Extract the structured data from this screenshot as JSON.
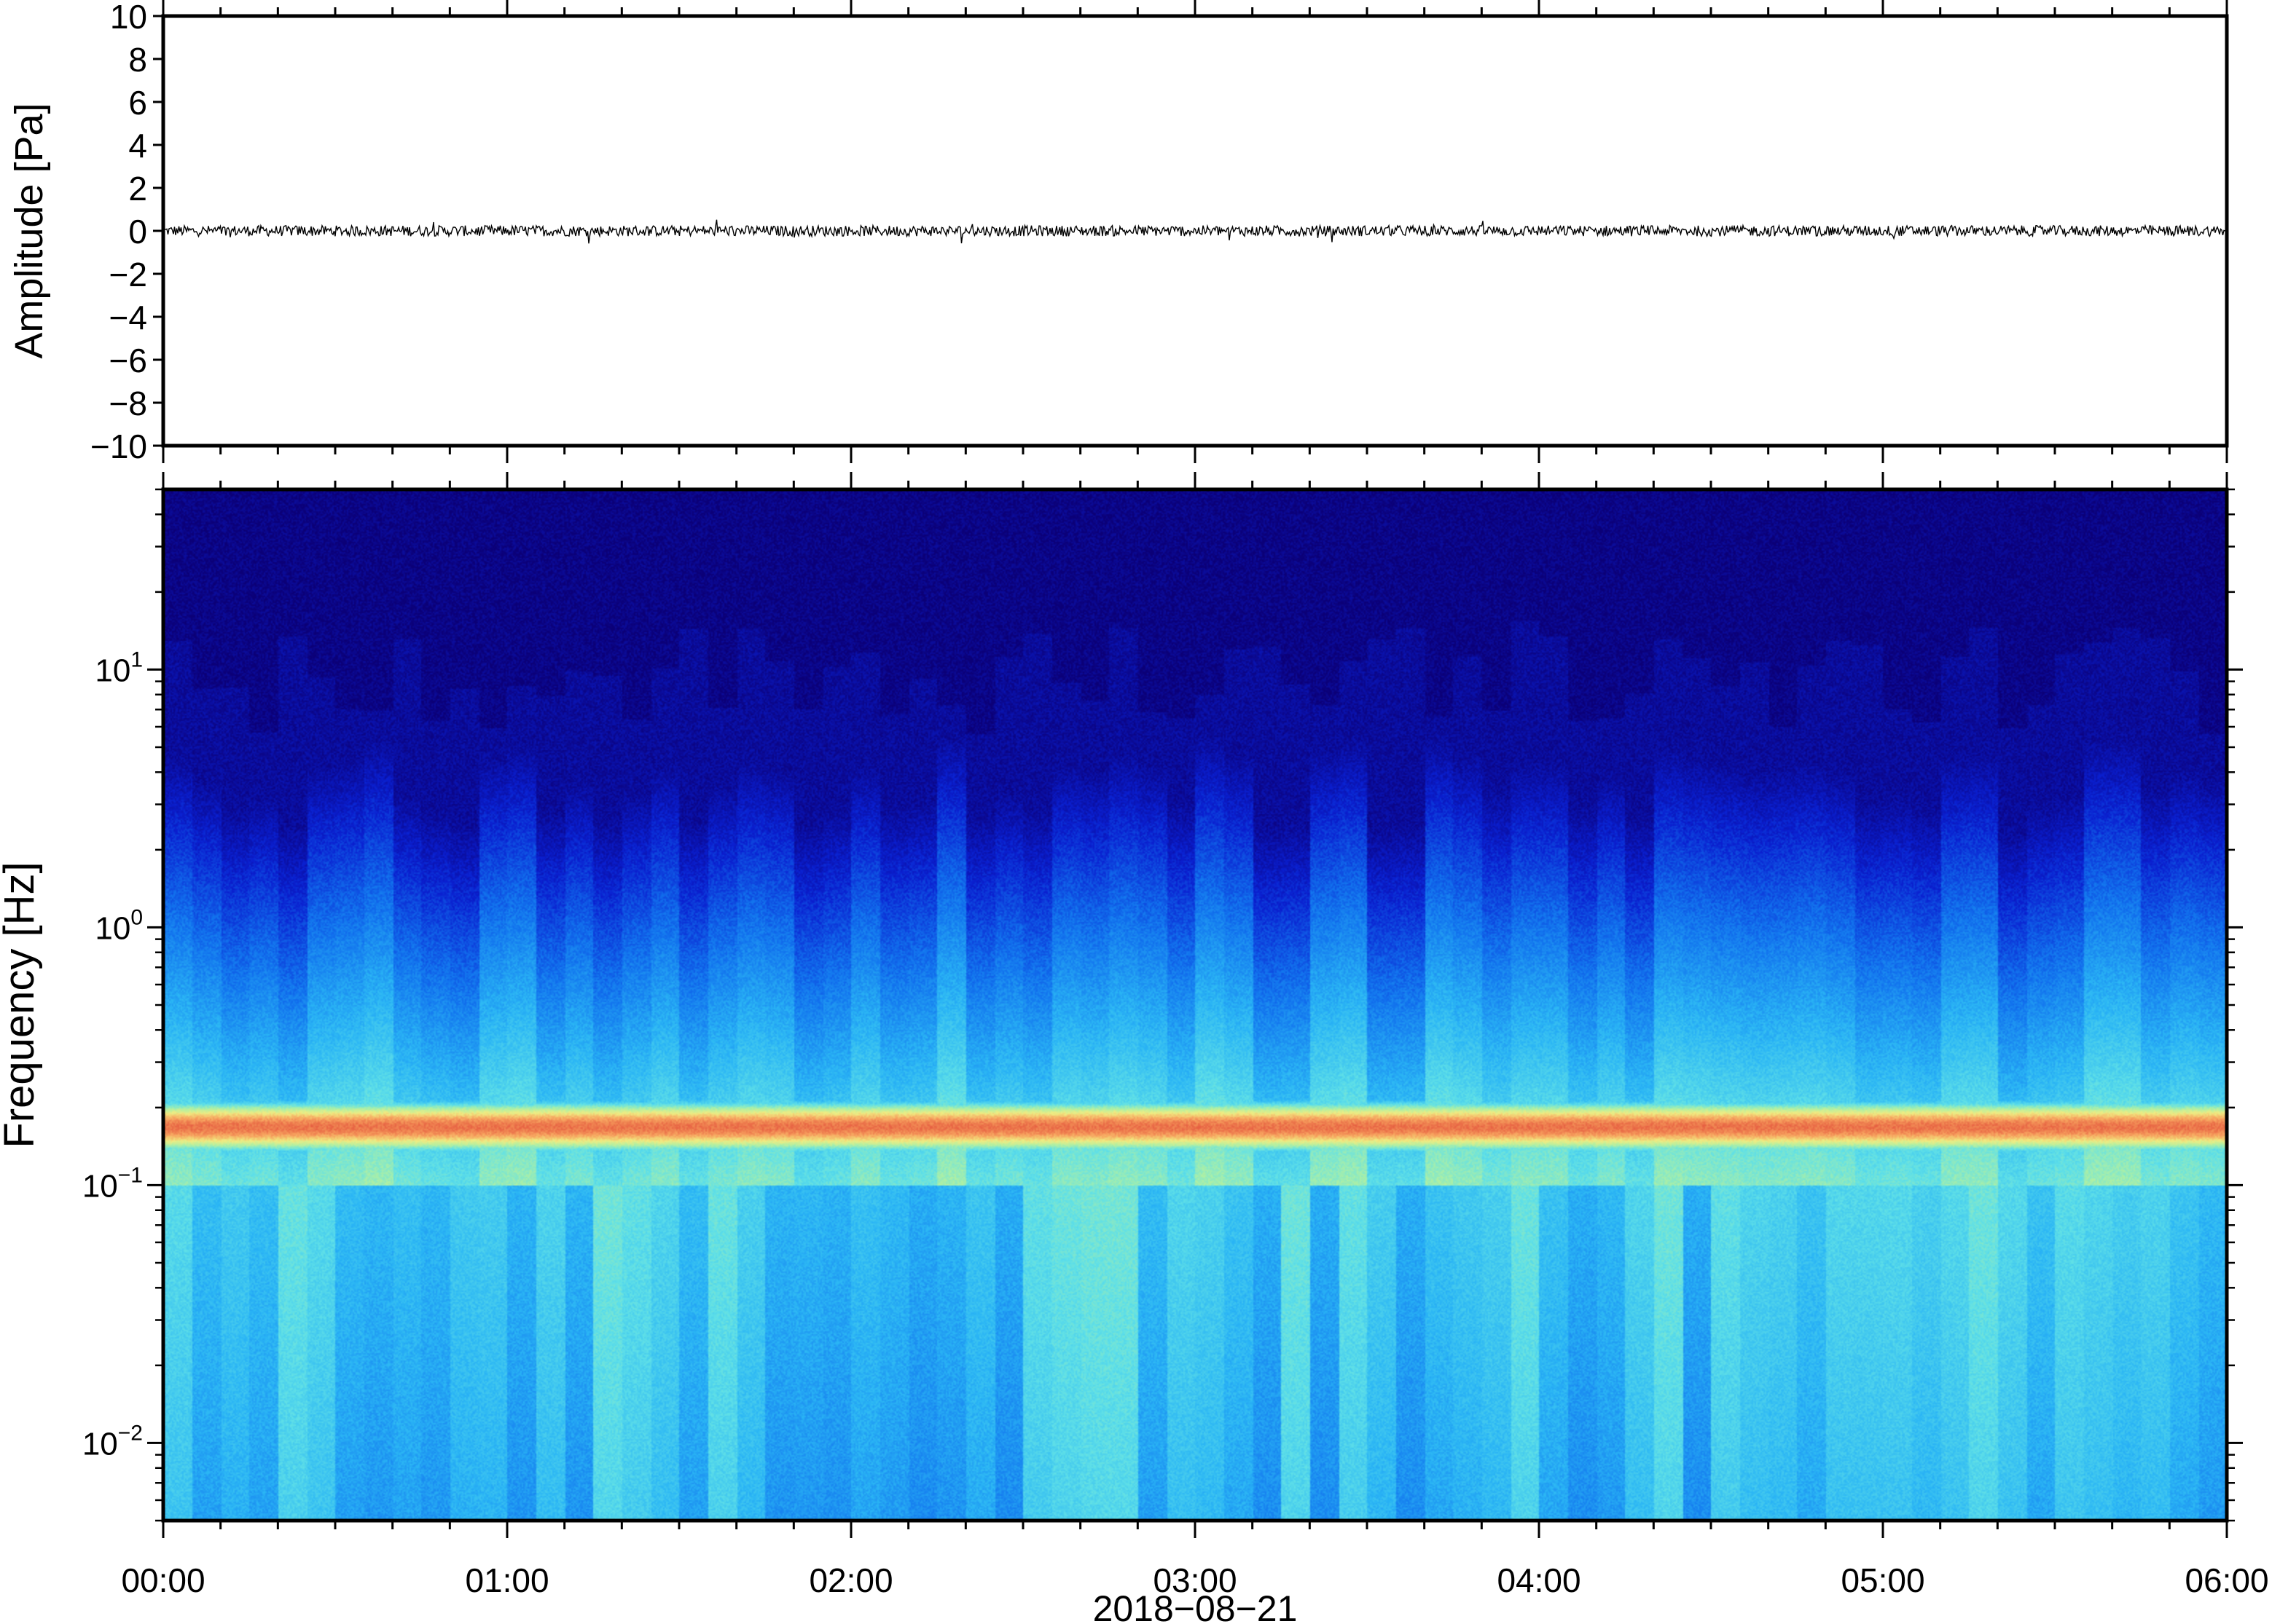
{
  "chart_data": [
    {
      "type": "line",
      "ylabel": "Amplitude [Pa]",
      "ylim": [
        -10,
        10
      ],
      "y_ticks": [
        "10",
        "8",
        "6",
        "4",
        "2",
        "0",
        "−2",
        "−4",
        "−6",
        "−8",
        "−10"
      ],
      "y_tick_values": [
        10,
        8,
        6,
        4,
        2,
        0,
        -2,
        -4,
        -6,
        -8,
        -10
      ],
      "xlim": [
        "2018-08-21 00:00",
        "2018-08-21 06:00"
      ],
      "series": [
        {
          "values_summary": "noise around 0 Pa",
          "typical_abs_amplitude": 0.25,
          "max_abs_amplitude": 0.6
        }
      ],
      "line_color": "#000000"
    },
    {
      "type": "heatmap",
      "ylabel": "Frequency [Hz]",
      "xlabel": "2018−08−21",
      "y_scale": "log",
      "ylim": [
        0.005,
        50
      ],
      "y_ticks": [
        {
          "base": "10",
          "exp": "1",
          "value": 10
        },
        {
          "base": "10",
          "exp": "0",
          "value": 1
        },
        {
          "base": "10",
          "exp": "−1",
          "value": 0.1
        },
        {
          "base": "10",
          "exp": "−2",
          "value": 0.01
        }
      ],
      "x_ticks": [
        "00:00",
        "01:00",
        "02:00",
        "03:00",
        "04:00",
        "05:00",
        "06:00"
      ],
      "x_tick_hours": [
        0,
        1,
        2,
        3,
        4,
        5,
        6
      ],
      "colormap": [
        "#0b0077",
        "#0a1fd0",
        "#1273ee",
        "#2ab5f5",
        "#5fe0e8",
        "#aff0a4",
        "#f0ec82",
        "#f7a35f",
        "#e4553d"
      ],
      "features": {
        "peak_band_hz": [
          0.13,
          0.22
        ],
        "peak_color": "#e4553d",
        "top_noise_limit_hz": 10,
        "background_color": "#0b0077"
      }
    }
  ]
}
